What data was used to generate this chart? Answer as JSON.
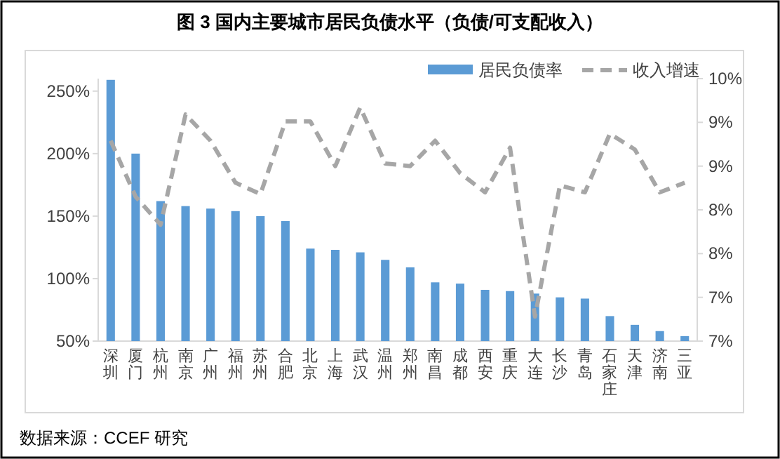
{
  "chart_data": {
    "type": "bar",
    "title": "图 3 国内主要城市居民负债水平（负债/可支配收入）",
    "categories": [
      "深圳",
      "厦门",
      "杭州",
      "南京",
      "广州",
      "福州",
      "苏州",
      "合肥",
      "北京",
      "上海",
      "武汉",
      "温州",
      "郑州",
      "南昌",
      "成都",
      "西安",
      "重庆",
      "大连",
      "长沙",
      "青岛",
      "石家庄",
      "天津",
      "济南",
      "三亚"
    ],
    "series": [
      {
        "name": "居民负债率",
        "color": "#5b9bd5",
        "values": [
          259,
          200,
          162,
          158,
          156,
          154,
          150,
          146,
          124,
          123,
          121,
          115,
          109,
          97,
          96,
          91,
          90,
          88,
          85,
          84,
          70,
          63,
          58,
          54
        ]
      },
      {
        "name": "收入增速",
        "type": "line",
        "axis": "y2",
        "color": "#a6a6a6",
        "line_style": "dashed",
        "values": [
          9.29,
          8.65,
          8.33,
          9.59,
          9.29,
          8.81,
          8.68,
          9.51,
          9.51,
          9.0,
          9.67,
          9.03,
          9.0,
          9.29,
          8.92,
          8.7,
          9.21,
          7.28,
          8.78,
          8.7,
          9.37,
          9.19,
          8.7,
          8.81
        ]
      }
    ],
    "ylim": [
      50,
      260
    ],
    "yticks": [
      {
        "value": 50,
        "label": "50%"
      },
      {
        "value": 100,
        "label": "100%"
      },
      {
        "value": 150,
        "label": "150%"
      },
      {
        "value": 200,
        "label": "200%"
      },
      {
        "value": 250,
        "label": "250%"
      }
    ],
    "y2lim": [
      7,
      10
    ],
    "y2ticks": [
      {
        "value": 7,
        "label": "7%"
      },
      {
        "value": 7.5,
        "label": "7%"
      },
      {
        "value": 8,
        "label": "8%"
      },
      {
        "value": 8.5,
        "label": "8%"
      },
      {
        "value": 9,
        "label": "9%"
      },
      {
        "value": 9.5,
        "label": "9%"
      },
      {
        "value": 10,
        "label": "10%"
      }
    ],
    "legend": "top right",
    "annotations": [
      "数据来源：CCEF 研究"
    ]
  }
}
